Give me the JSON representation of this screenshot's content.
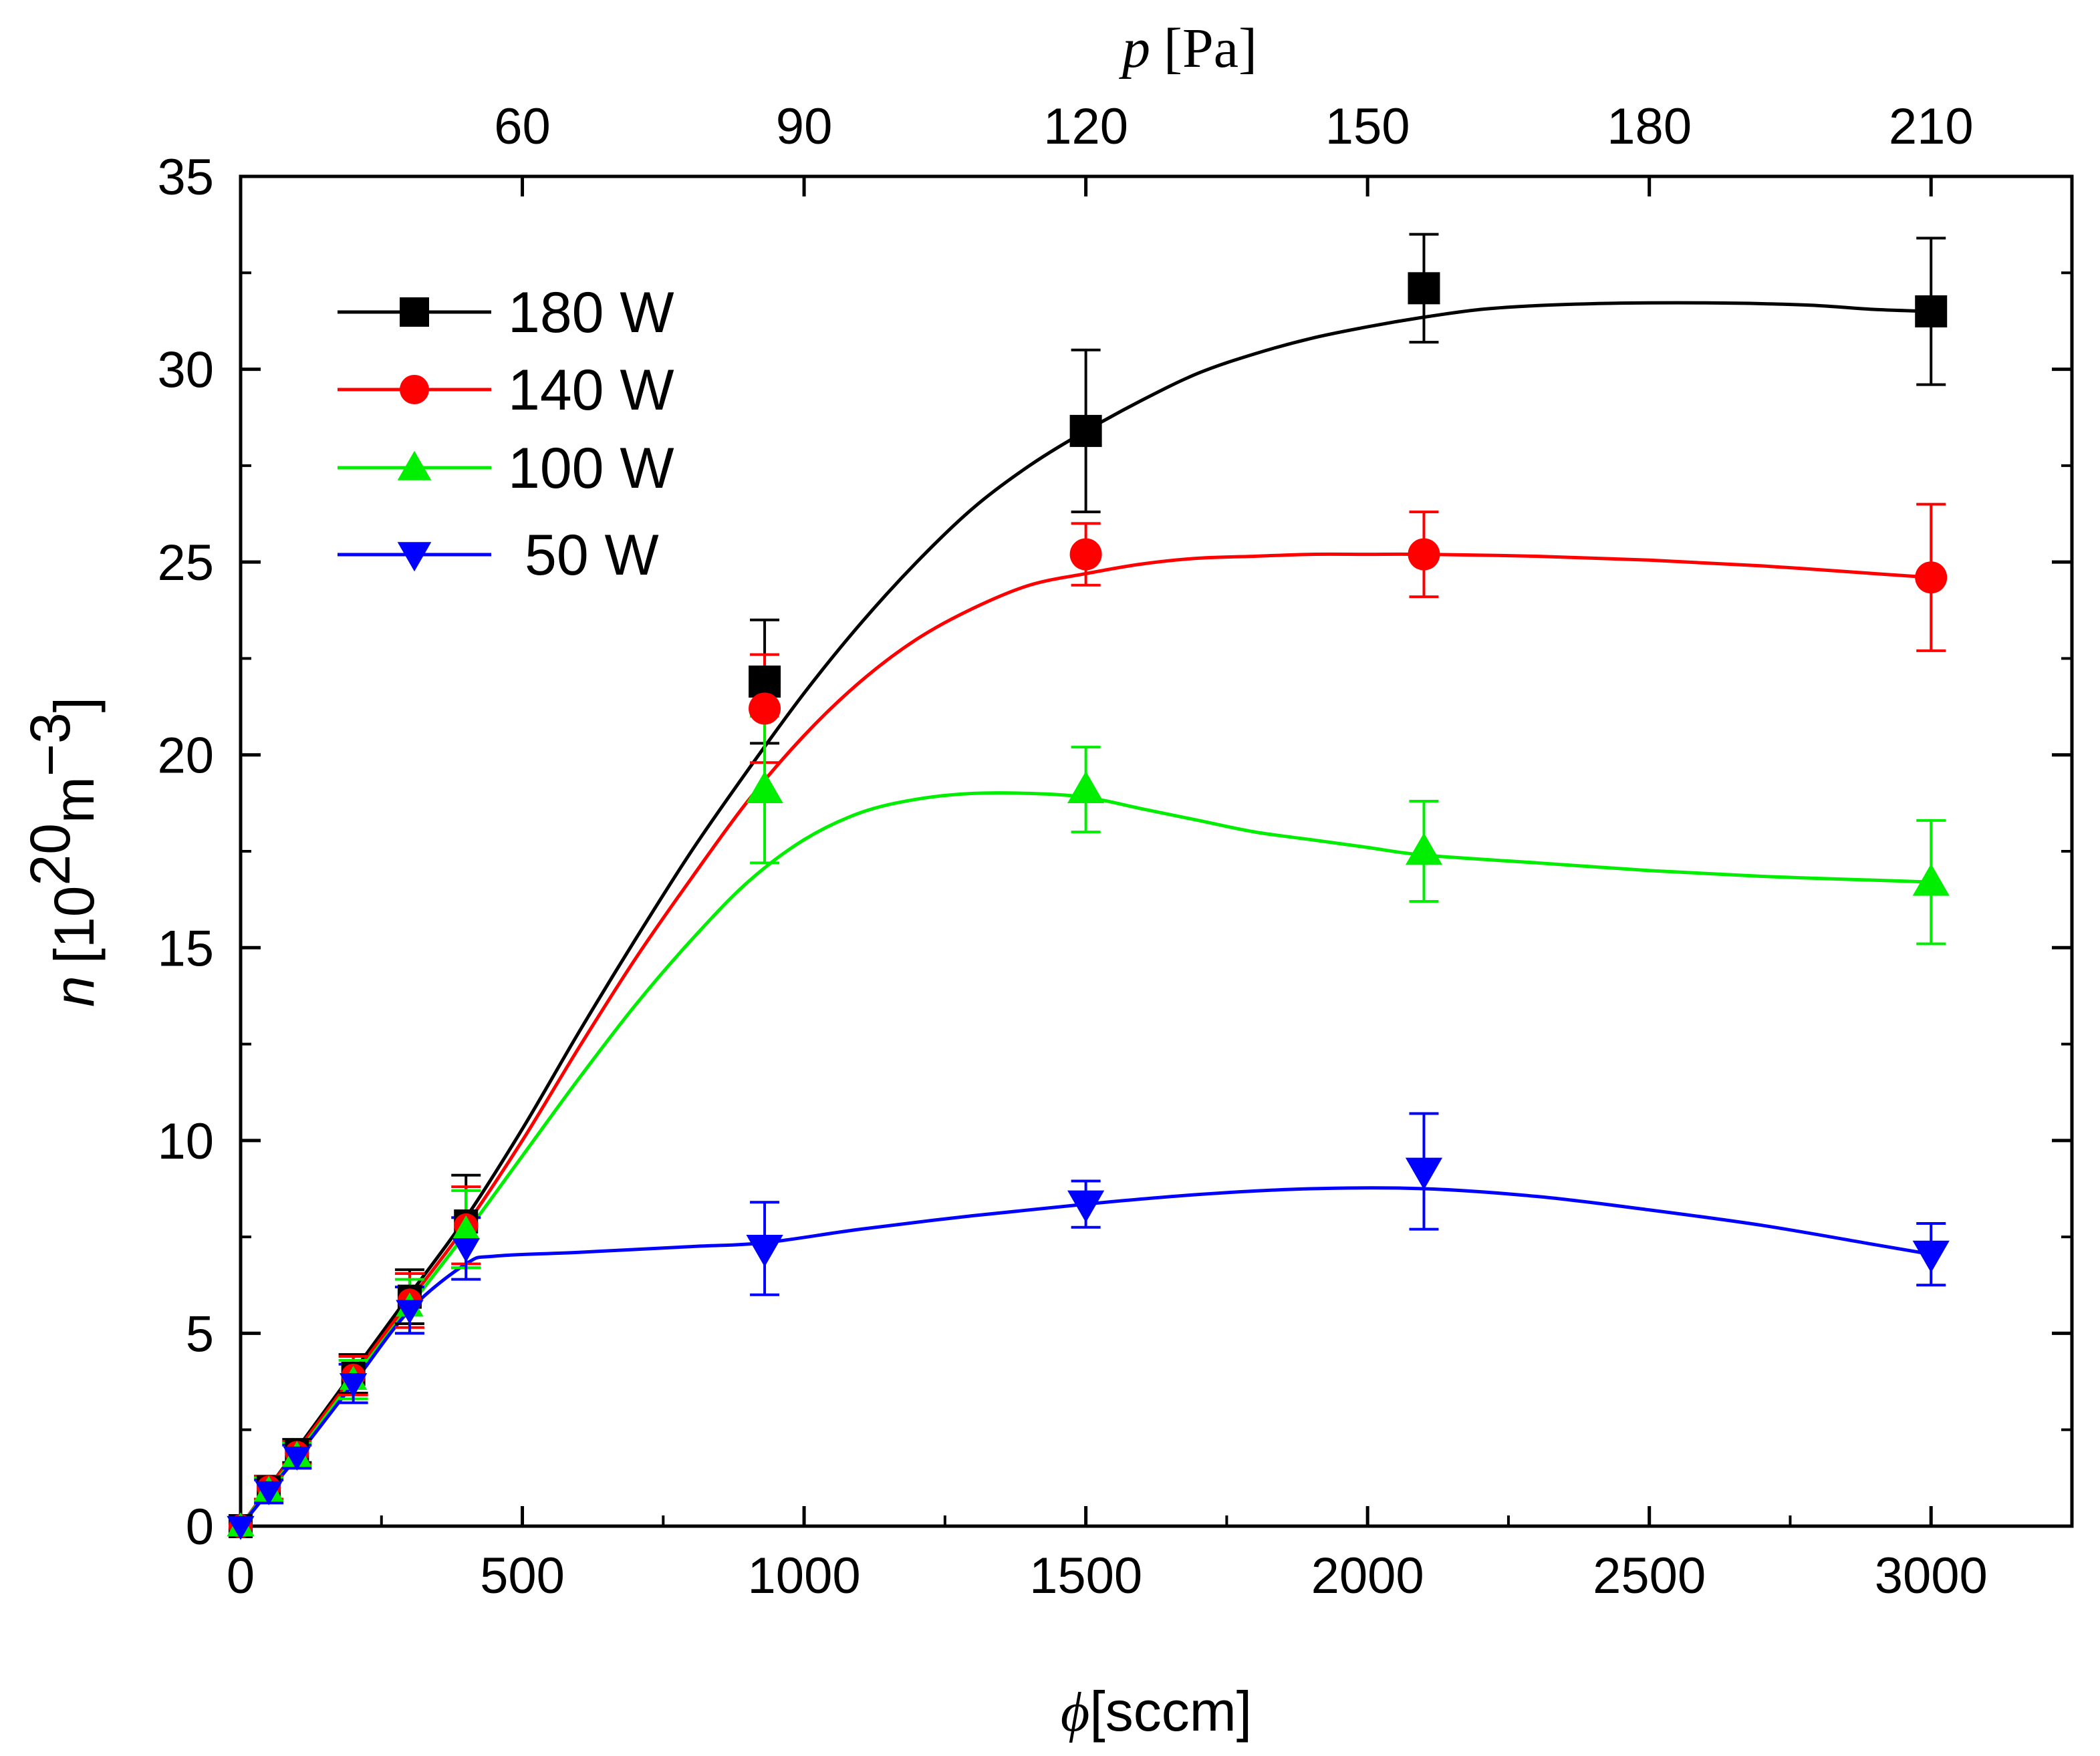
{
  "chart_data": {
    "type": "line",
    "title": "",
    "xlabel": {
      "symbol": "ϕ",
      "unit": "[sccm]"
    },
    "ylabel": {
      "symbol": "n",
      "prefix": "[10",
      "exp": "20",
      "unit": "m",
      "unit_exp": "−3",
      "suffix": "]"
    },
    "top_xlabel": {
      "symbol": "p",
      "unit": "[Pa]"
    },
    "xlim": [
      0,
      3250
    ],
    "ylim": [
      0,
      35
    ],
    "x_ticks": [
      "0",
      "500",
      "1000",
      "1500",
      "2000",
      "2500",
      "3000"
    ],
    "x_tick_values": [
      0,
      500,
      1000,
      1500,
      2000,
      2500,
      3000
    ],
    "y_ticks": [
      "0",
      "5",
      "10",
      "15",
      "20",
      "25",
      "30",
      "35"
    ],
    "y_tick_values": [
      0,
      5,
      10,
      15,
      20,
      25,
      30,
      35
    ],
    "top_ticks": [
      "60",
      "90",
      "120",
      "150",
      "180",
      "210"
    ],
    "top_tick_positions_flow": [
      500,
      1000,
      1500,
      2000,
      2500,
      3000
    ],
    "grid": false,
    "legend_position": "top-left",
    "series": [
      {
        "name": "180 W",
        "color": "#000000",
        "marker": "square",
        "x": [
          0,
          50,
          100,
          200,
          300,
          400,
          930,
          1500,
          2100,
          3000
        ],
        "y": [
          0,
          1.0,
          1.95,
          3.95,
          5.95,
          7.9,
          21.9,
          28.4,
          32.1,
          31.5
        ],
        "err": [
          0,
          0.3,
          0.3,
          0.5,
          0.7,
          1.2,
          1.6,
          2.1,
          1.4,
          1.9
        ],
        "fit": [
          [
            0,
            0
          ],
          [
            50,
            1.0
          ],
          [
            100,
            2.0
          ],
          [
            200,
            4.0
          ],
          [
            300,
            6.0
          ],
          [
            400,
            8.0
          ],
          [
            500,
            10.3
          ],
          [
            600,
            12.8
          ],
          [
            700,
            15.2
          ],
          [
            800,
            17.5
          ],
          [
            900,
            19.6
          ],
          [
            1000,
            21.6
          ],
          [
            1100,
            23.4
          ],
          [
            1200,
            25.0
          ],
          [
            1300,
            26.4
          ],
          [
            1400,
            27.5
          ],
          [
            1500,
            28.4
          ],
          [
            1600,
            29.2
          ],
          [
            1700,
            29.9
          ],
          [
            1800,
            30.4
          ],
          [
            1900,
            30.8
          ],
          [
            2000,
            31.1
          ],
          [
            2100,
            31.35
          ],
          [
            2200,
            31.55
          ],
          [
            2300,
            31.65
          ],
          [
            2400,
            31.7
          ],
          [
            2500,
            31.72
          ],
          [
            2600,
            31.72
          ],
          [
            2700,
            31.7
          ],
          [
            2800,
            31.65
          ],
          [
            2900,
            31.55
          ],
          [
            3000,
            31.5
          ]
        ]
      },
      {
        "name": "140 W",
        "color": "#ff0000",
        "marker": "circle",
        "x": [
          0,
          50,
          100,
          200,
          300,
          400,
          930,
          1500,
          2100,
          3000
        ],
        "y": [
          0,
          1.0,
          1.9,
          3.9,
          5.85,
          7.8,
          21.2,
          25.2,
          25.2,
          24.6
        ],
        "err": [
          0,
          0.3,
          0.3,
          0.5,
          0.7,
          1.0,
          1.4,
          0.8,
          1.1,
          1.9
        ],
        "fit": [
          [
            0,
            0
          ],
          [
            50,
            1.0
          ],
          [
            100,
            1.95
          ],
          [
            200,
            3.9
          ],
          [
            300,
            5.85
          ],
          [
            400,
            7.8
          ],
          [
            500,
            10.0
          ],
          [
            600,
            12.4
          ],
          [
            700,
            14.7
          ],
          [
            800,
            16.8
          ],
          [
            900,
            18.8
          ],
          [
            1000,
            20.5
          ],
          [
            1100,
            21.9
          ],
          [
            1200,
            23.0
          ],
          [
            1300,
            23.8
          ],
          [
            1400,
            24.4
          ],
          [
            1500,
            24.7
          ],
          [
            1600,
            24.95
          ],
          [
            1700,
            25.1
          ],
          [
            1800,
            25.15
          ],
          [
            1900,
            25.2
          ],
          [
            2000,
            25.2
          ],
          [
            2100,
            25.2
          ],
          [
            2300,
            25.15
          ],
          [
            2500,
            25.05
          ],
          [
            2700,
            24.9
          ],
          [
            2900,
            24.7
          ],
          [
            3000,
            24.6
          ]
        ]
      },
      {
        "name": "100 W",
        "color": "#00ee00",
        "marker": "triangle-up",
        "x": [
          0,
          50,
          100,
          200,
          300,
          400,
          930,
          1500,
          2100,
          3000
        ],
        "y": [
          0,
          0.95,
          1.85,
          3.8,
          5.7,
          7.7,
          19.1,
          19.1,
          17.5,
          16.7
        ],
        "err": [
          0,
          0.3,
          0.3,
          0.5,
          0.7,
          1.0,
          1.9,
          1.1,
          1.3,
          1.6
        ],
        "fit": [
          [
            0,
            0
          ],
          [
            50,
            0.95
          ],
          [
            100,
            1.85
          ],
          [
            200,
            3.8
          ],
          [
            300,
            5.7
          ],
          [
            400,
            7.6
          ],
          [
            500,
            9.6
          ],
          [
            600,
            11.6
          ],
          [
            700,
            13.5
          ],
          [
            800,
            15.2
          ],
          [
            900,
            16.7
          ],
          [
            1000,
            17.8
          ],
          [
            1100,
            18.5
          ],
          [
            1200,
            18.85
          ],
          [
            1300,
            19.0
          ],
          [
            1400,
            19.0
          ],
          [
            1500,
            18.9
          ],
          [
            1600,
            18.6
          ],
          [
            1700,
            18.3
          ],
          [
            1800,
            18.0
          ],
          [
            1900,
            17.8
          ],
          [
            2000,
            17.6
          ],
          [
            2100,
            17.4
          ],
          [
            2300,
            17.2
          ],
          [
            2500,
            17.0
          ],
          [
            2700,
            16.85
          ],
          [
            2900,
            16.75
          ],
          [
            3000,
            16.7
          ]
        ]
      },
      {
        "name": "50 W",
        "color": "#0000ff",
        "marker": "triangle-down",
        "x": [
          0,
          50,
          100,
          200,
          300,
          400,
          930,
          1500,
          2100,
          3000
        ],
        "y": [
          0,
          0.9,
          1.8,
          3.7,
          5.6,
          7.2,
          7.2,
          8.35,
          9.2,
          7.05
        ],
        "err": [
          0,
          0.3,
          0.3,
          0.5,
          0.6,
          0.8,
          1.2,
          0.6,
          1.5,
          0.8
        ],
        "fit": [
          [
            0,
            0
          ],
          [
            50,
            0.9
          ],
          [
            100,
            1.8
          ],
          [
            200,
            3.7
          ],
          [
            300,
            5.6
          ],
          [
            400,
            6.8
          ],
          [
            450,
            7.0
          ],
          [
            600,
            7.1
          ],
          [
            800,
            7.25
          ],
          [
            930,
            7.35
          ],
          [
            1100,
            7.7
          ],
          [
            1300,
            8.05
          ],
          [
            1500,
            8.35
          ],
          [
            1700,
            8.6
          ],
          [
            1900,
            8.75
          ],
          [
            2100,
            8.75
          ],
          [
            2300,
            8.55
          ],
          [
            2500,
            8.2
          ],
          [
            2700,
            7.8
          ],
          [
            2900,
            7.3
          ],
          [
            3000,
            7.05
          ]
        ]
      }
    ]
  }
}
